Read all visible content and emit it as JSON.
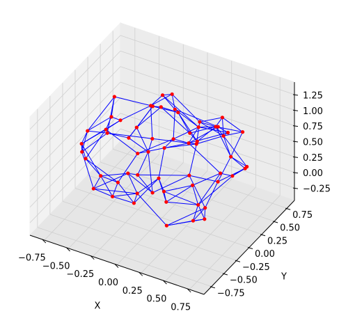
{
  "chart_data": {
    "type": "scatter3d",
    "xlabel": "X",
    "ylabel": "Y",
    "point_color": "#ff0000",
    "edge_color": "#0000ff",
    "xlim": [
      -0.9,
      0.9
    ],
    "ylim": [
      -0.9,
      0.9
    ],
    "zlim": [
      -0.45,
      1.45
    ],
    "xticks": [
      {
        "value": -0.75,
        "label": "−0.75"
      },
      {
        "value": -0.5,
        "label": "−0.50"
      },
      {
        "value": -0.25,
        "label": "−0.25"
      },
      {
        "value": 0,
        "label": "0.00"
      },
      {
        "value": 0.25,
        "label": "0.25"
      },
      {
        "value": 0.5,
        "label": "0.50"
      },
      {
        "value": 0.75,
        "label": "0.75"
      }
    ],
    "yticks": [
      {
        "value": -0.75,
        "label": "−0.75"
      },
      {
        "value": -0.5,
        "label": "−0.50"
      },
      {
        "value": -0.25,
        "label": "−0.25"
      },
      {
        "value": 0,
        "label": "0.00"
      },
      {
        "value": 0.25,
        "label": "0.25"
      },
      {
        "value": 0.5,
        "label": "0.50"
      },
      {
        "value": 0.75,
        "label": "0.75"
      }
    ],
    "zticks": [
      {
        "value": -0.25,
        "label": "−0.25"
      },
      {
        "value": 0,
        "label": "0.00"
      },
      {
        "value": 0.25,
        "label": "0.25"
      },
      {
        "value": 0.5,
        "label": "0.50"
      },
      {
        "value": 0.75,
        "label": "0.75"
      },
      {
        "value": 1,
        "label": "1.00"
      },
      {
        "value": 1.25,
        "label": "1.25"
      }
    ],
    "grid": true,
    "x": [
      -0.62,
      -0.45,
      -0.3,
      -0.12,
      0.05,
      0.22,
      0.4,
      0.58,
      0.7,
      -0.7,
      -0.55,
      -0.38,
      -0.2,
      -0.02,
      0.15,
      0.33,
      0.5,
      0.65,
      -0.48,
      -0.28,
      -0.08,
      0.12,
      0.3,
      0.47,
      0.6,
      -0.65,
      -0.4,
      -0.15,
      0.08,
      0.28,
      0.45,
      0.68,
      -0.58,
      -0.35,
      -0.1,
      0.18,
      0.38,
      0.55,
      -0.25,
      0.0,
      0.25,
      -0.5,
      0.45,
      -0.72,
      0.72,
      -0.3,
      0.1,
      0.35,
      -0.05,
      0.2,
      -0.42,
      0.52,
      -0.18,
      0.62,
      -0.6,
      0.02,
      0.3,
      -0.35,
      0.42,
      -0.1
    ],
    "y": [
      0.1,
      -0.5,
      0.35,
      -0.65,
      0.6,
      -0.2,
      0.45,
      -0.4,
      0.05,
      -0.25,
      0.55,
      -0.1,
      0.7,
      -0.45,
      0.25,
      -0.6,
      0.15,
      0.4,
      -0.6,
      0.05,
      0.35,
      -0.3,
      0.62,
      -0.05,
      -0.55,
      0.3,
      -0.35,
      -0.7,
      0.1,
      -0.45,
      0.5,
      -0.15,
      0.45,
      0.65,
      0.0,
      0.4,
      -0.65,
      0.25,
      -0.2,
      0.55,
      0.2,
      -0.05,
      -0.25,
      -0.1,
      0.3,
      0.3,
      -0.15,
      0.05,
      -0.4,
      0.68,
      0.62,
      0.6,
      0.15,
      -0.35,
      -0.45,
      -0.6,
      -0.05,
      -0.55,
      0.3,
      0.2
    ],
    "z": [
      0.5,
      0.2,
      0.9,
      0.6,
      0.3,
      1.1,
      0.7,
      0.4,
      0.55,
      0.45,
      0.25,
      1.0,
      0.55,
      0.95,
      0.1,
      0.65,
      1.15,
      0.35,
      0.75,
      0.05,
      1.2,
      0.5,
      0.8,
      0.0,
      0.85,
      0.9,
      1.05,
      0.4,
      1.25,
      -0.05,
      0.35,
      0.75,
      0.15,
      0.6,
      -0.1,
      0.85,
      0.55,
      1.0,
      0.3,
      0.45,
      0.7,
      0.95,
      -0.05,
      0.65,
      0.5,
      0.2,
      0.85,
      1.15,
      0.25,
      0.55,
      0.6,
      0.7,
      0.6,
      0.15,
      0.8,
      0.3,
      0.95,
      0.5,
      0.1,
      1.3
    ]
  }
}
